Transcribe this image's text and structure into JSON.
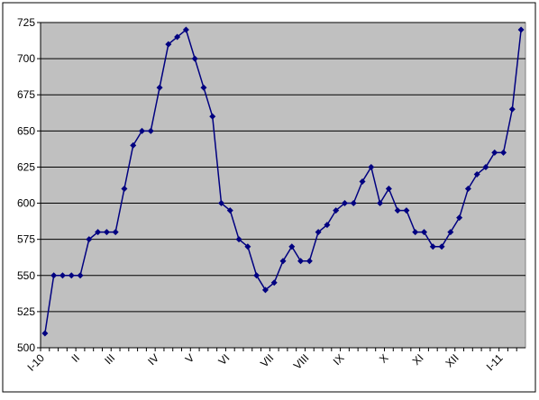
{
  "chart_data": {
    "type": "line",
    "categories": [
      "I-10",
      null,
      null,
      null,
      "II",
      null,
      null,
      null,
      "III",
      null,
      null,
      null,
      null,
      "IV",
      null,
      null,
      null,
      "V",
      null,
      null,
      null,
      "VI",
      null,
      null,
      null,
      null,
      "VII",
      null,
      null,
      null,
      "VIII",
      null,
      null,
      null,
      "IX",
      null,
      null,
      null,
      null,
      "X",
      null,
      null,
      null,
      "XI",
      null,
      null,
      null,
      "XII",
      null,
      null,
      null,
      null,
      "I-11",
      null,
      null
    ],
    "series": [
      {
        "color": "#000080",
        "values": [
          510,
          550,
          550,
          550,
          550,
          575,
          580,
          580,
          580,
          610,
          640,
          650,
          650,
          680,
          710,
          715,
          720,
          700,
          680,
          660,
          600,
          595,
          575,
          570,
          550,
          540,
          545,
          560,
          570,
          560,
          560,
          580,
          585,
          595,
          600,
          600,
          615,
          625,
          600,
          610,
          595,
          595,
          580,
          580,
          570,
          570,
          580,
          590,
          610,
          620,
          625,
          635,
          635,
          665,
          720
        ]
      }
    ],
    "ylim": [
      500,
      725
    ],
    "yticks": [
      500,
      525,
      550,
      575,
      600,
      625,
      650,
      675,
      700,
      725
    ],
    "grid": true,
    "plot_background": "#c0c0c0"
  }
}
